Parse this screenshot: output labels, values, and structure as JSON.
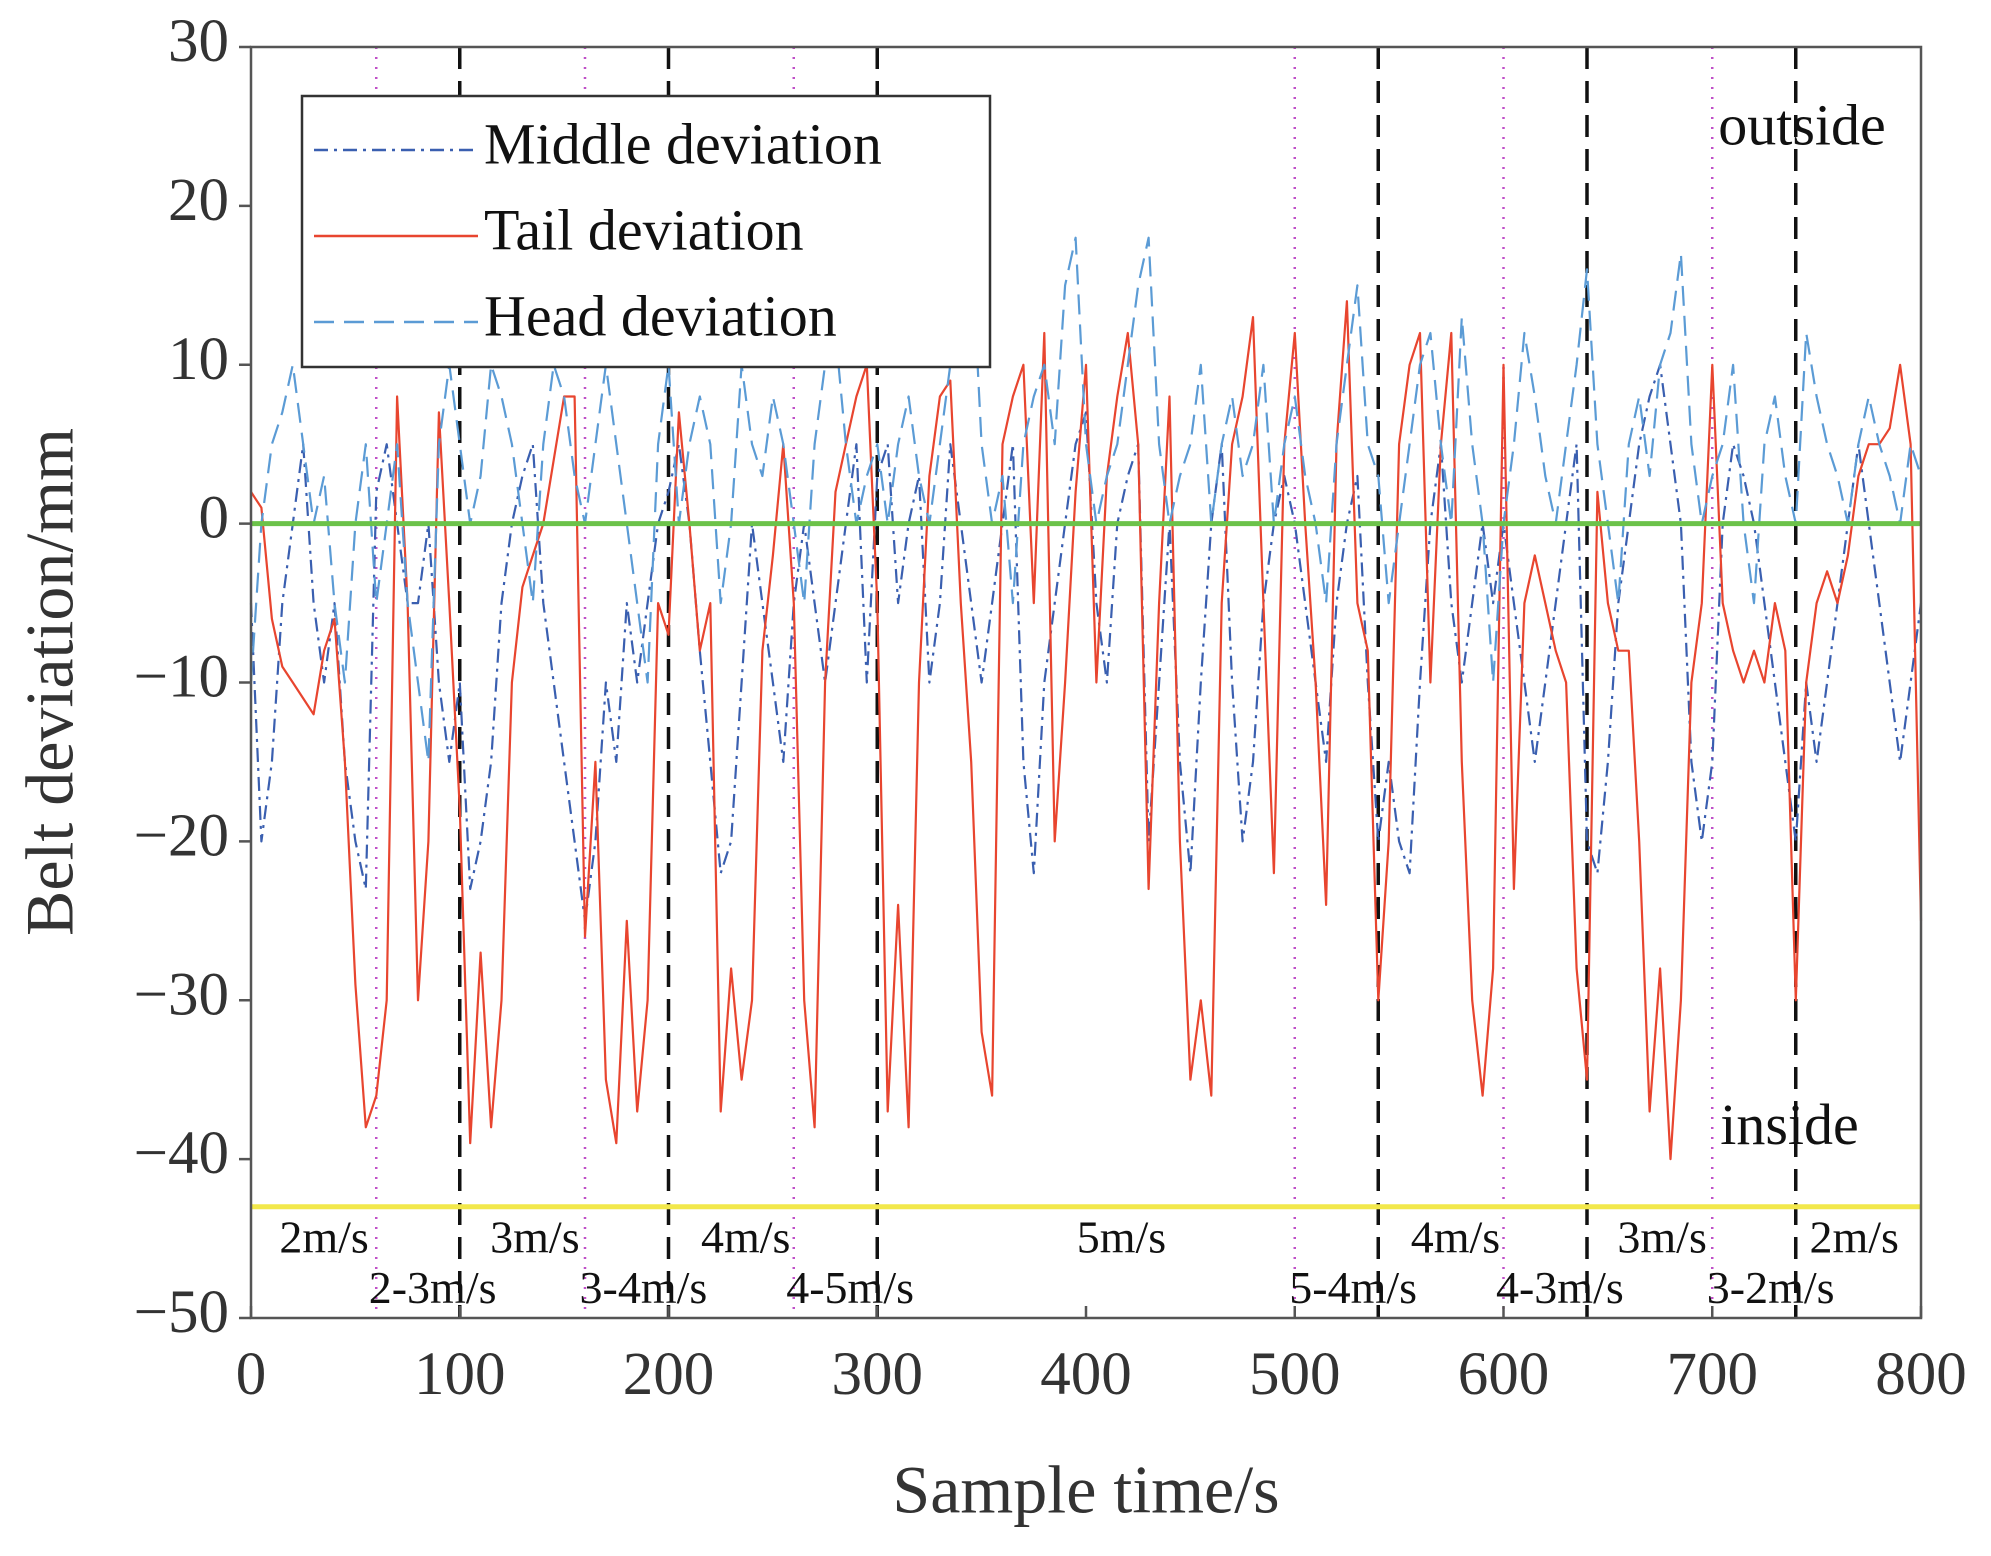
{
  "chart_data": {
    "type": "line",
    "xlabel": "Sample time/s",
    "ylabel": "Belt deviation/mm",
    "xlim": [
      0,
      800
    ],
    "ylim": [
      -50,
      30
    ],
    "xticks": [
      0,
      100,
      200,
      300,
      400,
      500,
      600,
      700,
      800
    ],
    "yticks": [
      {
        "value": -50,
        "label": "−50"
      },
      {
        "value": -40,
        "label": "−40"
      },
      {
        "value": -30,
        "label": "−30"
      },
      {
        "value": -20,
        "label": "−20"
      },
      {
        "value": -10,
        "label": "−10"
      },
      0,
      10,
      20,
      30
    ],
    "x": [
      0,
      5,
      10,
      15,
      20,
      25,
      30,
      35,
      40,
      45,
      50,
      55,
      60,
      65,
      70,
      75,
      80,
      85,
      90,
      95,
      100,
      105,
      110,
      115,
      120,
      125,
      130,
      135,
      140,
      145,
      150,
      155,
      160,
      165,
      170,
      175,
      180,
      185,
      190,
      195,
      200,
      205,
      210,
      215,
      220,
      225,
      230,
      235,
      240,
      245,
      250,
      255,
      260,
      265,
      270,
      275,
      280,
      285,
      290,
      295,
      300,
      305,
      310,
      315,
      320,
      325,
      330,
      335,
      340,
      345,
      350,
      355,
      360,
      365,
      370,
      375,
      380,
      385,
      390,
      395,
      400,
      405,
      410,
      415,
      420,
      425,
      430,
      435,
      440,
      445,
      450,
      455,
      460,
      465,
      470,
      475,
      480,
      485,
      490,
      495,
      500,
      505,
      510,
      515,
      520,
      525,
      530,
      535,
      540,
      545,
      550,
      555,
      560,
      565,
      570,
      575,
      580,
      585,
      590,
      595,
      600,
      605,
      610,
      615,
      620,
      625,
      630,
      635,
      640,
      645,
      650,
      655,
      660,
      665,
      670,
      675,
      680,
      685,
      690,
      695,
      700,
      705,
      710,
      715,
      720,
      725,
      730,
      735,
      740,
      745,
      750,
      755,
      760,
      765,
      770,
      775,
      780,
      785,
      790,
      795,
      800
    ],
    "series": [
      {
        "name": "Middle deviation",
        "color": "#3a5fb0",
        "dash": "14 6 3 6",
        "values": [
          -5,
          -20,
          -15,
          -5,
          0,
          5,
          -5,
          -10,
          -5,
          -15,
          -20,
          -23,
          2,
          5,
          0,
          -5,
          -5,
          0,
          -10,
          -15,
          -10,
          -23,
          -20,
          -15,
          -5,
          0,
          3,
          5,
          -5,
          -10,
          -15,
          -20,
          -25,
          -20,
          -10,
          -15,
          -5,
          -10,
          -5,
          0,
          2,
          5,
          0,
          -8,
          -15,
          -22,
          -20,
          -10,
          0,
          -5,
          -10,
          -15,
          -5,
          0,
          -5,
          -10,
          -5,
          0,
          5,
          -10,
          3,
          5,
          -5,
          0,
          3,
          -10,
          -5,
          5,
          0,
          -5,
          -10,
          -5,
          0,
          5,
          -15,
          -22,
          -10,
          -5,
          0,
          5,
          7,
          -5,
          -10,
          0,
          3,
          5,
          -20,
          -10,
          0,
          -15,
          -22,
          -10,
          0,
          5,
          -10,
          -20,
          -15,
          -5,
          0,
          3,
          0,
          -5,
          -10,
          -15,
          -5,
          0,
          3,
          -10,
          -20,
          -15,
          -20,
          -22,
          -10,
          0,
          5,
          -5,
          -10,
          -5,
          0,
          -5,
          0,
          -5,
          -10,
          -15,
          -10,
          -5,
          0,
          5,
          -20,
          -22,
          -15,
          -5,
          0,
          5,
          8,
          10,
          5,
          0,
          -15,
          -20,
          -15,
          0,
          5,
          3,
          0,
          -5,
          -10,
          -15,
          -20,
          -10,
          -15,
          -10,
          -5,
          0,
          5,
          0,
          -5,
          -10,
          -15,
          -10,
          -5
        ]
      },
      {
        "name": "Tail deviation",
        "color": "#e8452f",
        "dash": "",
        "values": [
          2,
          1,
          -6,
          -9,
          -10,
          -11,
          -12,
          -8,
          -6,
          -15,
          -29,
          -38,
          -36,
          -30,
          8,
          -5,
          -30,
          -20,
          7,
          -5,
          -18,
          -39,
          -27,
          -38,
          -30,
          -10,
          -4,
          -2,
          0,
          4,
          8,
          8,
          -26,
          -15,
          -35,
          -39,
          -25,
          -37,
          -30,
          -5,
          -7,
          7,
          0,
          -8,
          -5,
          -37,
          -28,
          -35,
          -30,
          -8,
          -2,
          5,
          -5,
          -30,
          -38,
          -10,
          2,
          5,
          8,
          10,
          -5,
          -37,
          -24,
          -38,
          -10,
          3,
          8,
          9,
          -5,
          -15,
          -32,
          -36,
          5,
          8,
          10,
          -5,
          12,
          -20,
          -10,
          2,
          10,
          -10,
          3,
          8,
          12,
          5,
          -23,
          -5,
          8,
          -20,
          -35,
          -30,
          -36,
          -5,
          5,
          8,
          13,
          -5,
          -22,
          5,
          12,
          0,
          -10,
          -24,
          5,
          14,
          -5,
          -8,
          -30,
          -20,
          5,
          10,
          12,
          -10,
          5,
          12,
          -15,
          -30,
          -36,
          -28,
          10,
          -23,
          -5,
          -2,
          -5,
          -8,
          -10,
          -28,
          -35,
          2,
          -5,
          -8,
          -8,
          -20,
          -37,
          -28,
          -40,
          -30,
          -10,
          -5,
          10,
          -5,
          -8,
          -10,
          -8,
          -10,
          -5,
          -8,
          -30,
          -10,
          -5,
          -3,
          -5,
          -2,
          3,
          5,
          5,
          6,
          10,
          5,
          -25
        ]
      },
      {
        "name": "Head deviation",
        "color": "#5b9bd5",
        "dash": "20 10",
        "values": [
          -10,
          0,
          5,
          7,
          10,
          5,
          0,
          3,
          -5,
          -10,
          0,
          5,
          -5,
          0,
          5,
          -5,
          -10,
          -15,
          5,
          10,
          5,
          0,
          3,
          10,
          8,
          5,
          0,
          -5,
          5,
          10,
          8,
          3,
          0,
          5,
          10,
          5,
          0,
          -5,
          -10,
          5,
          10,
          0,
          5,
          8,
          5,
          -5,
          0,
          10,
          5,
          3,
          8,
          5,
          0,
          -5,
          5,
          10,
          12,
          5,
          0,
          3,
          5,
          0,
          5,
          8,
          3,
          0,
          5,
          10,
          12,
          18,
          5,
          0,
          3,
          -5,
          5,
          8,
          10,
          5,
          15,
          18,
          5,
          0,
          3,
          5,
          10,
          15,
          18,
          5,
          0,
          3,
          5,
          10,
          0,
          5,
          8,
          3,
          5,
          10,
          0,
          5,
          8,
          3,
          0,
          -5,
          5,
          10,
          15,
          5,
          3,
          -5,
          0,
          5,
          10,
          12,
          5,
          0,
          13,
          5,
          0,
          -10,
          0,
          5,
          12,
          8,
          3,
          0,
          5,
          10,
          16,
          5,
          0,
          -5,
          5,
          8,
          3,
          10,
          12,
          17,
          5,
          0,
          3,
          5,
          10,
          0,
          -5,
          5,
          8,
          3,
          0,
          12,
          8,
          5,
          3,
          0,
          5,
          8,
          5,
          3,
          0,
          5,
          3
        ]
      }
    ],
    "hlines": [
      {
        "value": 0,
        "color": "#6cc24a"
      },
      {
        "value": -43,
        "color": "#f2e84b"
      }
    ],
    "vlines_dashed": {
      "color": "#111111",
      "values": [
        100,
        200,
        300,
        540,
        640,
        740
      ]
    },
    "vlines_dotted": {
      "color": "#c050c8",
      "values": [
        60,
        160,
        260,
        500,
        600,
        700
      ]
    },
    "annotations": [
      {
        "text": "2m/s",
        "x": 35,
        "y": -45.2
      },
      {
        "text": "2-3m/s",
        "x": 87,
        "y": -48.4
      },
      {
        "text": "3m/s",
        "x": 136,
        "y": -45.2
      },
      {
        "text": "3-4m/s",
        "x": 188,
        "y": -48.4
      },
      {
        "text": "4m/s",
        "x": 237,
        "y": -45.2
      },
      {
        "text": "4-5m/s",
        "x": 287,
        "y": -48.4
      },
      {
        "text": "5m/s",
        "x": 417,
        "y": -45.2
      },
      {
        "text": "5-4m/s",
        "x": 528,
        "y": -48.4
      },
      {
        "text": "4m/s",
        "x": 577,
        "y": -45.2
      },
      {
        "text": "4-3m/s",
        "x": 627,
        "y": -48.4
      },
      {
        "text": "3m/s",
        "x": 676,
        "y": -45.2
      },
      {
        "text": "3-2m/s",
        "x": 728,
        "y": -48.4
      },
      {
        "text": "2m/s",
        "x": 768,
        "y": -45.2
      },
      {
        "text": "outside",
        "x": 743,
        "y": 24.7
      },
      {
        "text": "inside",
        "x": 737,
        "y": -38.2
      }
    ]
  }
}
